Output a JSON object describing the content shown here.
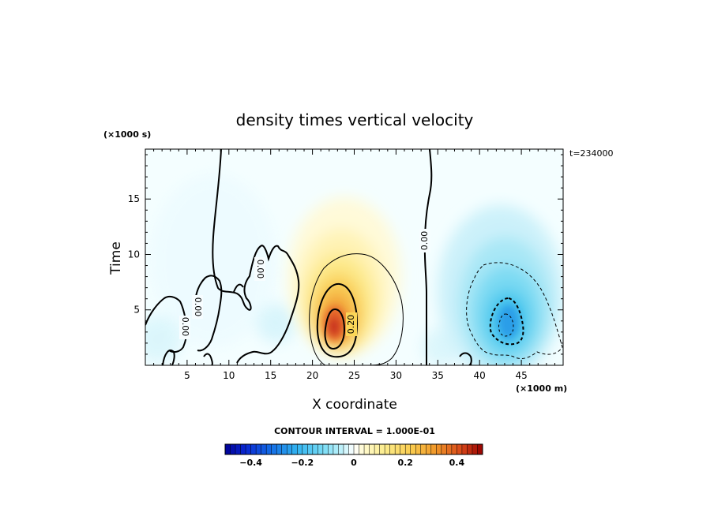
{
  "chart_data": {
    "type": "heatmap",
    "title": "density times vertical velocity",
    "xlabel": "X coordinate",
    "ylabel": "Time",
    "x_unit_label": "(×1000 m)",
    "y_unit_label": "(×1000 s)",
    "time_label": "t=234000",
    "contour_interval_label": "CONTOUR INTERVAL = 1.000E-01",
    "xlim": [
      0,
      50
    ],
    "ylim": [
      0,
      19.5
    ],
    "x_ticks": [
      "5",
      "10",
      "15",
      "20",
      "25",
      "30",
      "35",
      "40",
      "45"
    ],
    "y_ticks": [
      "5",
      "10",
      "15"
    ],
    "colorbar_ticks": [
      "−0.4",
      "−0.2",
      "0",
      "0.2",
      "0.4"
    ],
    "colorbar_range": [
      -0.5,
      0.5
    ],
    "contour_labels": [
      "0.00",
      "0.00",
      "0.00",
      "0.00",
      "0.20"
    ],
    "features": [
      {
        "sign": "positive",
        "x_center": 22.5,
        "y_center": 3.5,
        "peak": 0.45
      },
      {
        "sign": "negative",
        "x_center": 43.5,
        "y_center": 4.0,
        "peak": -0.35
      }
    ],
    "grid": false,
    "colors": {
      "negative_max": "#0000a0",
      "negative_mid": "#4ad0f0",
      "zero": "#ffffff",
      "positive_mid": "#f8e060",
      "positive_max": "#b00000"
    }
  }
}
